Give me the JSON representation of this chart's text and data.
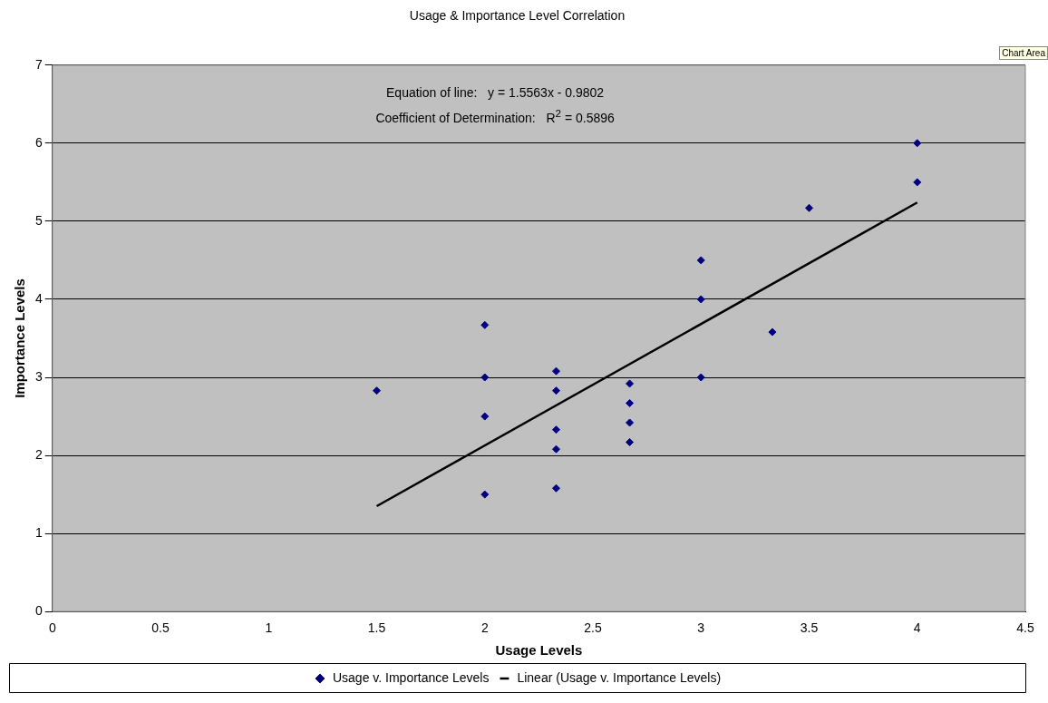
{
  "chart_data": {
    "type": "scatter",
    "title": "Usage & Importance Level Correlation",
    "xlabel": "Usage Levels",
    "ylabel": "Importance Levels",
    "xlim": [
      0,
      4.5
    ],
    "xticks": [
      0,
      0.5,
      1,
      1.5,
      2,
      2.5,
      3,
      3.5,
      4,
      4.5
    ],
    "ylim": [
      0,
      7
    ],
    "yticks": [
      0,
      1,
      2,
      3,
      4,
      5,
      6,
      7
    ],
    "grid": "y",
    "legend": "bottom",
    "series": [
      {
        "name": "Usage v. Importance Levels",
        "marker": "diamond",
        "color": "#000080",
        "x": [
          1.5,
          2,
          2,
          2,
          2,
          2.33,
          2.33,
          2.33,
          2.33,
          2.33,
          2.67,
          2.67,
          2.67,
          2.67,
          3,
          3,
          3,
          3.33,
          3.5,
          4,
          4
        ],
        "values": [
          2.83,
          3.67,
          3,
          2.5,
          1.5,
          3.08,
          2.83,
          2.33,
          2.08,
          1.58,
          2.92,
          2.67,
          2.42,
          2.17,
          4.5,
          4,
          3,
          3.58,
          5.17,
          6,
          5.5
        ]
      },
      {
        "name": "Linear (Usage v. Importance Levels)",
        "type": "line",
        "marker": "none",
        "color": "#000000",
        "x": [
          1.5,
          4
        ],
        "values": [
          1.35,
          5.24
        ]
      }
    ],
    "annotations": [
      "Equation of line:   y = 1.5563x - 0.9802",
      "Coefficient of Determination:   R$^{2}$ = 0.5896",
      "Chart Area"
    ]
  }
}
